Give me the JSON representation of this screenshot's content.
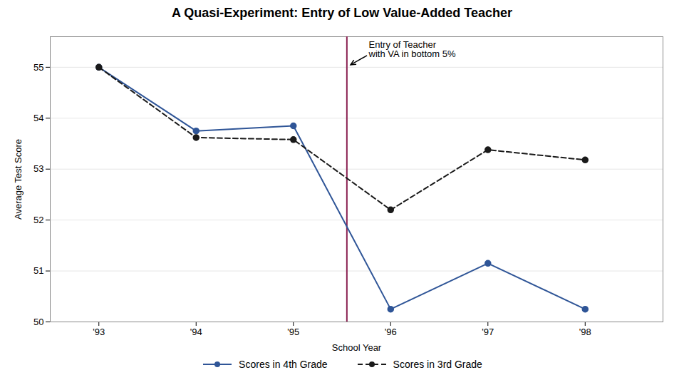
{
  "chart_data": {
    "type": "line",
    "title": "A Quasi-Experiment: Entry of Low Value-Added Teacher",
    "xlabel": "School Year",
    "ylabel": "Average Test Score",
    "x": [
      1993,
      1994,
      1995,
      1996,
      1997,
      1998
    ],
    "series": [
      {
        "name": "Scores in 4th Grade",
        "color": "#2F5597",
        "marker": "circle",
        "line_style": "solid",
        "values": [
          55.0,
          53.75,
          53.85,
          50.25,
          51.15,
          50.25
        ]
      },
      {
        "name": "Scores in 3rd Grade",
        "color": "#1a1a1a",
        "marker": "circle",
        "line_style": "dashed",
        "values": [
          55.0,
          53.62,
          53.58,
          52.2,
          53.38,
          53.18
        ]
      }
    ],
    "xlim": [
      1992.5,
      1998.8
    ],
    "ylim": [
      50,
      55.6
    ],
    "xticks": [
      {
        "value": 1993,
        "label": "'93"
      },
      {
        "value": 1994,
        "label": "'94"
      },
      {
        "value": 1995,
        "label": "'95"
      },
      {
        "value": 1996,
        "label": "'96"
      },
      {
        "value": 1997,
        "label": "'97"
      },
      {
        "value": 1998,
        "label": "'98"
      }
    ],
    "yticks": [
      50,
      51,
      52,
      53,
      54,
      55
    ],
    "grid": true,
    "legend": "bottom",
    "vlines": [
      {
        "x": 1995.55,
        "color": "#8B2252"
      }
    ],
    "annotations": [
      {
        "text": "Entry of Teacher\nwith VA in bottom 5%",
        "x": 1995.57,
        "y": 55.0
      }
    ]
  }
}
